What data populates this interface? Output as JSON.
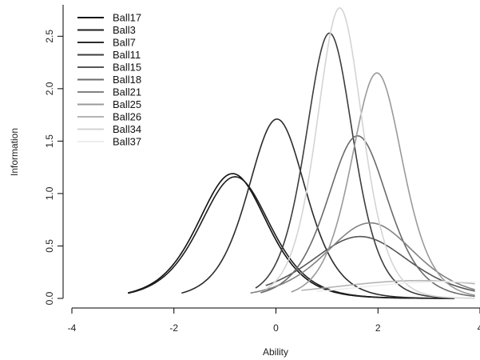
{
  "chart_data": {
    "type": "line",
    "title": "",
    "xlabel": "Ability",
    "ylabel": "Information",
    "xlim": [
      -4,
      4
    ],
    "ylim": [
      0,
      2.8
    ],
    "x_ticks": [
      "-4",
      "-2",
      "0",
      "2",
      "4"
    ],
    "y_ticks": [
      "0.0",
      "0.5",
      "1.0",
      "1.5",
      "2.0",
      "2.5"
    ],
    "legend_position": "top-left",
    "series": [
      {
        "name": "Ball17",
        "color": "#111111",
        "peak_x": -0.85,
        "peak_y": 1.19,
        "x_range": [
          -2.9,
          3.5
        ]
      },
      {
        "name": "Ball3",
        "color": "#1e1e1e",
        "peak_x": -0.8,
        "peak_y": 1.16,
        "x_range": [
          -2.9,
          3.5
        ]
      },
      {
        "name": "Ball7",
        "color": "#2b2b2b",
        "peak_x": 0.02,
        "peak_y": 1.71,
        "x_range": [
          -1.85,
          3.0
        ]
      },
      {
        "name": "Ball11",
        "color": "#3d3d3d",
        "peak_x": 1.05,
        "peak_y": 2.53,
        "x_range": [
          -0.4,
          3.3
        ]
      },
      {
        "name": "Ball15",
        "color": "#555555",
        "peak_x": 1.65,
        "peak_y": 0.59,
        "x_range": [
          -0.2,
          3.9
        ]
      },
      {
        "name": "Ball18",
        "color": "#6b6b6b",
        "peak_x": 1.6,
        "peak_y": 1.55,
        "x_range": [
          -0.3,
          3.9
        ]
      },
      {
        "name": "Ball21",
        "color": "#828282",
        "peak_x": 1.85,
        "peak_y": 0.72,
        "x_range": [
          -0.5,
          3.9
        ]
      },
      {
        "name": "Ball25",
        "color": "#9a9a9a",
        "peak_x": 1.98,
        "peak_y": 2.15,
        "x_range": [
          0.3,
          3.9
        ]
      },
      {
        "name": "Ball26",
        "color": "#b4b4b4",
        "peak_x": 2.8,
        "peak_y": 0.17,
        "x_range": [
          0.5,
          3.9
        ]
      },
      {
        "name": "Ball34",
        "color": "#d4d4d4",
        "peak_x": 1.25,
        "peak_y": 2.77,
        "x_range": [
          -0.2,
          3.9
        ]
      },
      {
        "name": "Ball37",
        "color": "#ededed",
        "peak_x": 3.3,
        "peak_y": 0.16,
        "x_range": [
          0.8,
          3.9
        ]
      }
    ]
  }
}
